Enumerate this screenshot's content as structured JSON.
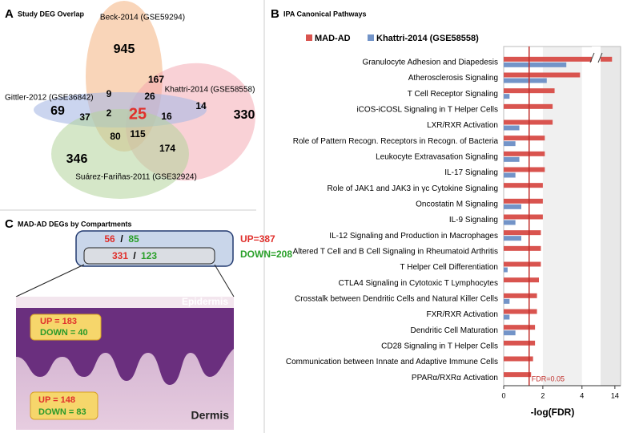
{
  "panel_a": {
    "letter": "A",
    "title": "Study DEG Overlap",
    "set_labels": [
      "Beck-2014 (GSE59294)",
      "Khattri-2014 (GSE58558)",
      "Gittler-2012 (GSE36842)",
      "Suárez-Fariñas-2011 (GSE32924)"
    ],
    "counts": [
      945,
      167,
      330,
      69,
      9,
      26,
      14,
      25,
      2,
      16,
      37,
      80,
      115,
      174,
      346
    ]
  },
  "chart_data": {
    "type": "hbar",
    "panel_label": "B",
    "title": "IPA Canonical Pathways",
    "categories": [
      "Granulocyte Adhesion and Diapedesis",
      "Atherosclerosis Signaling",
      "T Cell Receptor Signaling",
      "iCOS-iCOSL Signaling in T Helper Cells",
      "LXR/RXR Activation",
      "Role of Pattern Recogn. Receptors in Recogn. of Bacteria",
      "Leukocyte Extravasation Signaling",
      "IL-17 Signaling",
      "Role of JAK1 and JAK3 in γc Cytokine Signaling",
      "Oncostatin M Signaling",
      "IL-9 Signaling",
      "IL-12 Signaling and Production in Macrophages",
      "Altered T Cell and B Cell Signaling in Rheumatoid Arthritis",
      "T Helper Cell Differentiation",
      "CTLA4 Signaling in Cytotoxic T Lymphocytes",
      "Crosstalk between Dendritic Cells and Natural Killer Cells",
      "FXR/RXR Activation",
      "Dendritic Cell Maturation",
      "CD28 Signaling in T Helper Cells",
      "Communication between Innate and Adaptive Immune Cells",
      "PPARα/RXRα Activation"
    ],
    "series": [
      {
        "name": "MAD-AD",
        "color": "#d9544f",
        "values": [
          13.8,
          3.9,
          2.6,
          2.5,
          2.5,
          2.1,
          2.1,
          2.1,
          2.0,
          2.0,
          2.0,
          1.9,
          1.9,
          1.9,
          1.8,
          1.7,
          1.7,
          1.6,
          1.6,
          1.5,
          1.4
        ]
      },
      {
        "name": "Khattri-2014 (GSE58558)",
        "color": "#7394c8",
        "values": [
          3.2,
          2.2,
          0.3,
          null,
          0.8,
          0.6,
          0.8,
          0.6,
          null,
          0.9,
          0.6,
          0.9,
          null,
          0.2,
          null,
          0.3,
          0.3,
          0.6,
          null,
          null,
          null
        ]
      }
    ],
    "xlim": [
      0,
      14.4
    ],
    "axis_break": [
      4.5,
      13
    ],
    "xticks": [
      0,
      2,
      4,
      14
    ],
    "xlabel": "-log(FDR)",
    "fdr_threshold": 1.3,
    "fdr_label": "FDR=0.05"
  },
  "panel_c": {
    "letter": "C",
    "title": "MAD-AD DEGs by Compartments",
    "sep": "/",
    "top": {
      "up": 56,
      "down": 85
    },
    "inner": {
      "up": 331,
      "down": 123
    },
    "total_up": "UP=387",
    "total_down": "DOWN=208",
    "epidermis": {
      "label": "Epidermis",
      "up": "UP = 183",
      "down": "DOWN = 40"
    },
    "dermis": {
      "label": "Dermis",
      "up": "UP = 148",
      "down": "DOWN = 83"
    }
  }
}
